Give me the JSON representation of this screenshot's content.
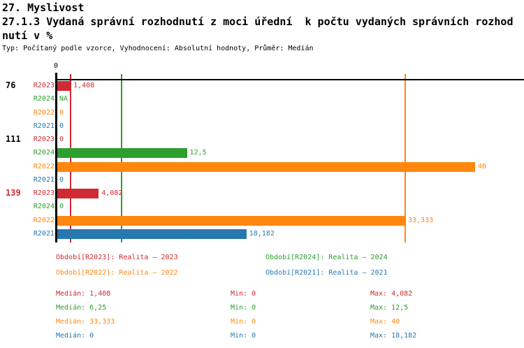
{
  "header": {
    "title": "27. Myslivost",
    "subtitle_line1": "27.1.3 Vydaná správní rozhodnutí z moci úřední  k počtu vydaných správních rozhod",
    "subtitle_line2": "nutí v %",
    "meta": "Typ: Počítaný podle vzorce, Vyhodnocení: Absolutní hodnoty, Průměr: Medián"
  },
  "colors": {
    "R2023": "#d02a33",
    "R2024": "#2e9e2e",
    "R2022": "#ff870f",
    "R2021": "#2878b0",
    "axis": "#000000",
    "group_label_default": "#000000"
  },
  "chart_data": {
    "type": "bar",
    "orientation": "horizontal",
    "unit": "%",
    "axis": {
      "zero_label": "0",
      "min": 0,
      "implied_max": 44.6,
      "grid": false
    },
    "series_order": [
      "R2023",
      "R2024",
      "R2022",
      "R2021"
    ],
    "groups": [
      {
        "label": "76",
        "label_color": "black",
        "rows": [
          {
            "series": "R2023",
            "value": 1.408,
            "display": "1,408"
          },
          {
            "series": "R2024",
            "value": null,
            "display": "NA"
          },
          {
            "series": "R2022",
            "value": 0,
            "display": "0"
          },
          {
            "series": "R2021",
            "value": 0,
            "display": "0"
          }
        ]
      },
      {
        "label": "111",
        "label_color": "black",
        "rows": [
          {
            "series": "R2023",
            "value": 0,
            "display": "0"
          },
          {
            "series": "R2024",
            "value": 12.5,
            "display": "12,5"
          },
          {
            "series": "R2022",
            "value": 40,
            "display": "40"
          },
          {
            "series": "R2021",
            "value": 0,
            "display": "0"
          }
        ]
      },
      {
        "label": "139",
        "label_color": "red",
        "rows": [
          {
            "series": "R2023",
            "value": 4.082,
            "display": "4,082"
          },
          {
            "series": "R2024",
            "value": 0,
            "display": "0"
          },
          {
            "series": "R2022",
            "value": 33.333,
            "display": "33,333"
          },
          {
            "series": "R2021",
            "value": 18.182,
            "display": "18,182"
          }
        ]
      }
    ],
    "median_lines": [
      {
        "series": "R2023",
        "value": 1.408
      },
      {
        "series": "R2024",
        "value": 6.25
      },
      {
        "series": "R2022",
        "value": 33.333
      },
      {
        "series": "R2021",
        "value": 0
      }
    ]
  },
  "legend": [
    {
      "series": "R2023",
      "label": "Období[R2023]: Realita – 2023"
    },
    {
      "series": "R2024",
      "label": "Období[R2024]: Realita – 2024"
    },
    {
      "series": "R2022",
      "label": "Období[R2022]: Realita – 2022"
    },
    {
      "series": "R2021",
      "label": "Období[R2021]: Realita – 2021"
    }
  ],
  "stats": [
    {
      "series": "R2023",
      "median": "Medián: 1,408",
      "min": "Min: 0",
      "max": "Max: 4,082"
    },
    {
      "series": "R2024",
      "median": "Medián: 6,25",
      "min": "Min: 0",
      "max": "Max: 12,5"
    },
    {
      "series": "R2022",
      "median": "Medián: 33,333",
      "min": "Min: 0",
      "max": "Max: 40"
    },
    {
      "series": "R2021",
      "median": "Medián: 0",
      "min": "Min: 0",
      "max": "Max: 18,182"
    }
  ]
}
